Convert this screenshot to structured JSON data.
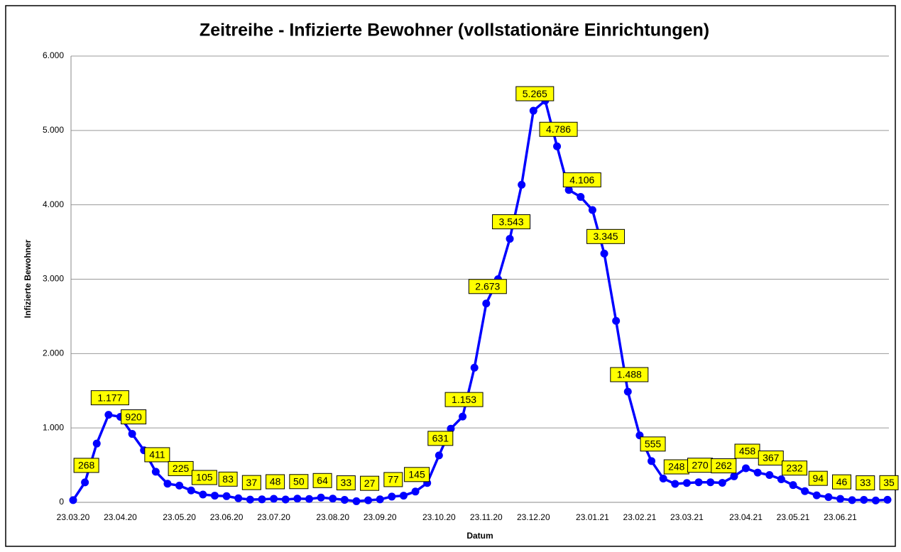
{
  "chart_data": {
    "type": "line",
    "title": "Zeitreihe - Infizierte Bewohner (vollstationäre Einrichtungen)",
    "y_label": "Infizierte  Bewohner",
    "x_label": "Datum",
    "categories": [
      "23.03.20",
      null,
      null,
      null,
      "23.04.20",
      null,
      null,
      null,
      null,
      "23.05.20",
      null,
      null,
      null,
      "23.06.20",
      null,
      null,
      null,
      "23.07.20",
      null,
      null,
      null,
      null,
      "23.08.20",
      null,
      null,
      null,
      "23.09.20",
      null,
      null,
      null,
      null,
      "23.10.20",
      null,
      null,
      null,
      "23.11.20",
      null,
      null,
      null,
      "23.12.20",
      null,
      null,
      null,
      null,
      "23.01.21",
      null,
      null,
      null,
      "23.02.21",
      null,
      null,
      null,
      "23.03.21",
      null,
      null,
      null,
      null,
      "23.04.21",
      null,
      null,
      null,
      "23.05.21",
      null,
      null,
      null,
      "23.06.21",
      null,
      null,
      null,
      null
    ],
    "series": [
      {
        "name": "Infizierte Bewohner",
        "color": "#0000ff",
        "values": [
          30,
          268,
          790,
          1177,
          1150,
          920,
          700,
          411,
          250,
          225,
          160,
          105,
          90,
          83,
          55,
          37,
          40,
          48,
          38,
          50,
          45,
          64,
          50,
          33,
          15,
          27,
          40,
          77,
          90,
          145,
          260,
          631,
          990,
          1153,
          1810,
          2673,
          3000,
          3543,
          4270,
          5265,
          5400,
          4786,
          4200,
          4106,
          3930,
          3345,
          2440,
          1488,
          900,
          555,
          320,
          248,
          260,
          270,
          270,
          262,
          350,
          458,
          400,
          367,
          310,
          232,
          150,
          94,
          70,
          46,
          30,
          33,
          25,
          35
        ],
        "value_labels": [
          null,
          "268",
          null,
          "1.177",
          null,
          "920",
          null,
          "411",
          null,
          "225",
          null,
          "105",
          null,
          "83",
          null,
          "37",
          null,
          "48",
          null,
          "50",
          null,
          "64",
          null,
          "33",
          null,
          "27",
          null,
          "77",
          null,
          "145",
          null,
          "631",
          null,
          "1.153",
          null,
          "2.673",
          null,
          "3.543",
          null,
          "5.265",
          null,
          "4.786",
          null,
          "4.106",
          null,
          "3.345",
          null,
          "1.488",
          null,
          "555",
          null,
          "248",
          null,
          "270",
          null,
          "262",
          null,
          "458",
          null,
          "367",
          null,
          "232",
          null,
          "94",
          null,
          "46",
          null,
          "33",
          null,
          "35"
        ]
      }
    ],
    "ylim": [
      0,
      6000
    ],
    "yticks": [
      0,
      {
        "value": 1000,
        "label": "1.000"
      },
      {
        "value": 2000,
        "label": "2.000"
      },
      {
        "value": 3000,
        "label": "3.000"
      },
      {
        "value": 4000,
        "label": "4.000"
      },
      {
        "value": 5000,
        "label": "5.000"
      },
      {
        "value": 6000,
        "label": "6.000"
      }
    ],
    "grid": true
  }
}
